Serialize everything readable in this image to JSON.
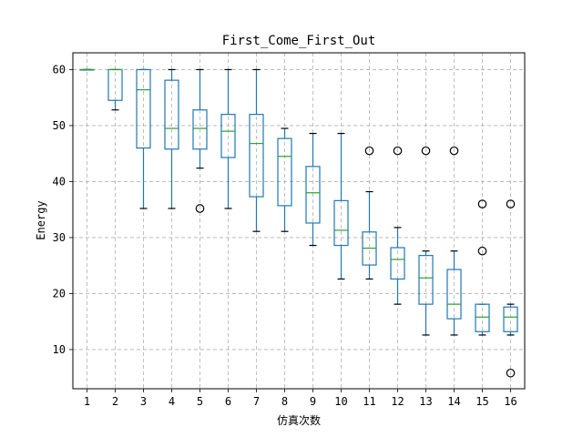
{
  "chart_data": {
    "type": "box",
    "title": "First_Come_First_Out",
    "xlabel": "仿真次数",
    "ylabel": "Energy",
    "ylim": [
      3,
      63
    ],
    "yticks": [
      10,
      20,
      30,
      40,
      50,
      60
    ],
    "grid": true,
    "categories": [
      "1",
      "2",
      "3",
      "4",
      "5",
      "6",
      "7",
      "8",
      "9",
      "10",
      "11",
      "12",
      "13",
      "14",
      "15",
      "16"
    ],
    "boxes": [
      {
        "label": "1",
        "whislo": 60,
        "q1": 60,
        "med": 60,
        "q3": 60,
        "whishi": 60,
        "fliers": []
      },
      {
        "label": "2",
        "whislo": 52.8,
        "q1": 54.5,
        "med": 60,
        "q3": 60,
        "whishi": 60,
        "fliers": []
      },
      {
        "label": "3",
        "whislo": 35.2,
        "q1": 46,
        "med": 56.4,
        "q3": 60,
        "whishi": 60,
        "fliers": []
      },
      {
        "label": "4",
        "whislo": 35.2,
        "q1": 45.8,
        "med": 49.5,
        "q3": 58.1,
        "whishi": 60,
        "fliers": []
      },
      {
        "label": "5",
        "whislo": 42.4,
        "q1": 45.8,
        "med": 49.5,
        "q3": 52.8,
        "whishi": 60,
        "fliers": [
          35.2
        ]
      },
      {
        "label": "6",
        "whislo": 35.2,
        "q1": 44.3,
        "med": 49,
        "q3": 52,
        "whishi": 60,
        "fliers": []
      },
      {
        "label": "7",
        "whislo": 31.1,
        "q1": 37.3,
        "med": 46.8,
        "q3": 52,
        "whishi": 60,
        "fliers": []
      },
      {
        "label": "8",
        "whislo": 31.1,
        "q1": 35.7,
        "med": 44.5,
        "q3": 47.7,
        "whishi": 49.5,
        "fliers": []
      },
      {
        "label": "9",
        "whislo": 28.6,
        "q1": 32.6,
        "med": 38,
        "q3": 42.7,
        "whishi": 48.6,
        "fliers": []
      },
      {
        "label": "10",
        "whislo": 22.6,
        "q1": 28.6,
        "med": 31.3,
        "q3": 36.6,
        "whishi": 48.6,
        "fliers": []
      },
      {
        "label": "11",
        "whislo": 22.6,
        "q1": 25.1,
        "med": 28.1,
        "q3": 31,
        "whishi": 38.2,
        "fliers": [
          45.5
        ]
      },
      {
        "label": "12",
        "whislo": 18.1,
        "q1": 22.6,
        "med": 26.1,
        "q3": 28.2,
        "whishi": 31.8,
        "fliers": [
          45.5
        ]
      },
      {
        "label": "13",
        "whislo": 12.6,
        "q1": 18.1,
        "med": 22.8,
        "q3": 26.8,
        "whishi": 27.6,
        "fliers": [
          45.5
        ]
      },
      {
        "label": "14",
        "whislo": 12.6,
        "q1": 15.5,
        "med": 18.1,
        "q3": 24.3,
        "whishi": 27.6,
        "fliers": [
          45.5
        ]
      },
      {
        "label": "15",
        "whislo": 12.6,
        "q1": 13.2,
        "med": 15.8,
        "q3": 18.1,
        "whishi": 18.1,
        "fliers": [
          36,
          27.6
        ]
      },
      {
        "label": "16",
        "whislo": 12.6,
        "q1": 13.2,
        "med": 15.8,
        "q3": 17.6,
        "whishi": 18.1,
        "fliers": [
          36,
          5.8
        ]
      }
    ],
    "colors": {
      "box": "#1f77b4",
      "median": "#2ca02c",
      "caps": "#000000",
      "grid": "#b0b0b0"
    }
  }
}
